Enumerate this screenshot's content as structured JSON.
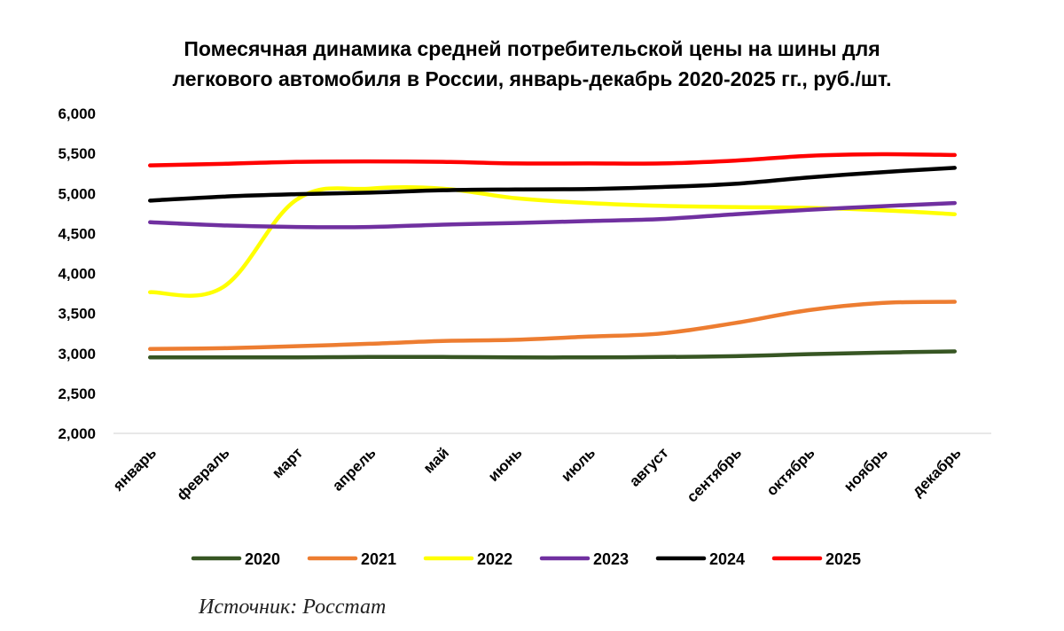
{
  "chart_data": {
    "type": "line",
    "title_lines": [
      "Помесячная динамика средней потребительской цены на шины для",
      "легкового автомобиля в России, январь-декабрь 2020-2025 гг., руб./шт."
    ],
    "categories": [
      "январь",
      "февраль",
      "март",
      "апрель",
      "май",
      "июнь",
      "июль",
      "август",
      "сентябрь",
      "октябрь",
      "ноябрь",
      "декабрь"
    ],
    "ylim": [
      2000,
      6000
    ],
    "yticks": [
      2000,
      2500,
      3000,
      3500,
      4000,
      4500,
      5000,
      5500,
      6000
    ],
    "ytick_labels": [
      "2,000",
      "2,500",
      "3,000",
      "3,500",
      "4,000",
      "4,500",
      "5,000",
      "5,500",
      "6,000"
    ],
    "grid": false,
    "legend_position": "bottom",
    "series": [
      {
        "name": "2020",
        "color": "#375623",
        "values": [
          2950,
          2950,
          2950,
          2955,
          2955,
          2950,
          2950,
          2955,
          2965,
          2990,
          3010,
          3025
        ]
      },
      {
        "name": "2021",
        "color": "#ED7D31",
        "values": [
          3055,
          3065,
          3090,
          3120,
          3155,
          3170,
          3210,
          3250,
          3380,
          3540,
          3630,
          3645
        ]
      },
      {
        "name": "2022",
        "color": "#FFFF00",
        "values": [
          3765,
          3830,
          4920,
          5060,
          5060,
          4940,
          4880,
          4845,
          4830,
          4820,
          4790,
          4740
        ]
      },
      {
        "name": "2023",
        "color": "#7030A0",
        "values": [
          4640,
          4600,
          4580,
          4580,
          4610,
          4630,
          4655,
          4680,
          4740,
          4795,
          4840,
          4880
        ]
      },
      {
        "name": "2024",
        "color": "#000000",
        "values": [
          4910,
          4960,
          4990,
          5010,
          5040,
          5050,
          5055,
          5080,
          5120,
          5200,
          5265,
          5320
        ]
      },
      {
        "name": "2025",
        "color": "#FF0000",
        "values": [
          5350,
          5370,
          5395,
          5400,
          5395,
          5375,
          5375,
          5375,
          5410,
          5470,
          5490,
          5480
        ]
      }
    ],
    "source_note": "Источник: Росстат"
  }
}
